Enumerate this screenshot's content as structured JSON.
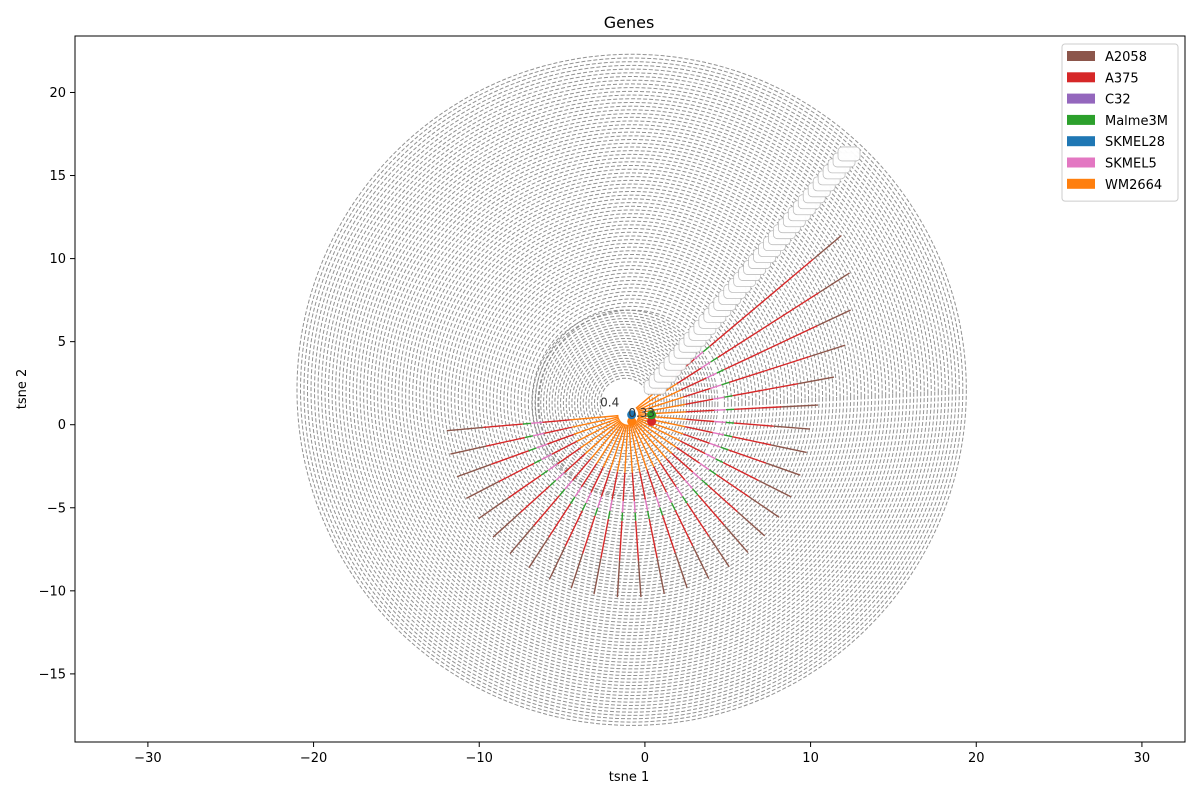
{
  "chart_data": {
    "type": "scatter",
    "title": "Genes",
    "xlabel": "tsne 1",
    "ylabel": "tsne 2",
    "xlim": [
      -34.4,
      32.6
    ],
    "ylim": [
      -19.1,
      23.4
    ],
    "xticks": [
      -30,
      -20,
      -10,
      0,
      10,
      20,
      30
    ],
    "yticks": [
      -15,
      -10,
      -5,
      0,
      5,
      10,
      15,
      20
    ],
    "grid": false,
    "legend_position": "top-right",
    "legend": [
      {
        "name": "A2058",
        "color": "#8c564b"
      },
      {
        "name": "A375",
        "color": "#d62728"
      },
      {
        "name": "C32",
        "color": "#9467bd"
      },
      {
        "name": "Malme3M",
        "color": "#2ca02c"
      },
      {
        "name": "SKMEL28",
        "color": "#1f77b4"
      },
      {
        "name": "SKMEL5",
        "color": "#e377c2"
      },
      {
        "name": "WM2664",
        "color": "#ff7f0e"
      }
    ],
    "guide_circles": {
      "color": "#7f7f7f",
      "style": "dashed",
      "outer": {
        "cx": -0.8,
        "cy": 2.1,
        "r": 20.2
      },
      "inner": {
        "cx": -0.8,
        "cy": 1.3,
        "r": 5.6
      }
    },
    "annotations": [
      "0.33",
      "0.4"
    ]
  }
}
